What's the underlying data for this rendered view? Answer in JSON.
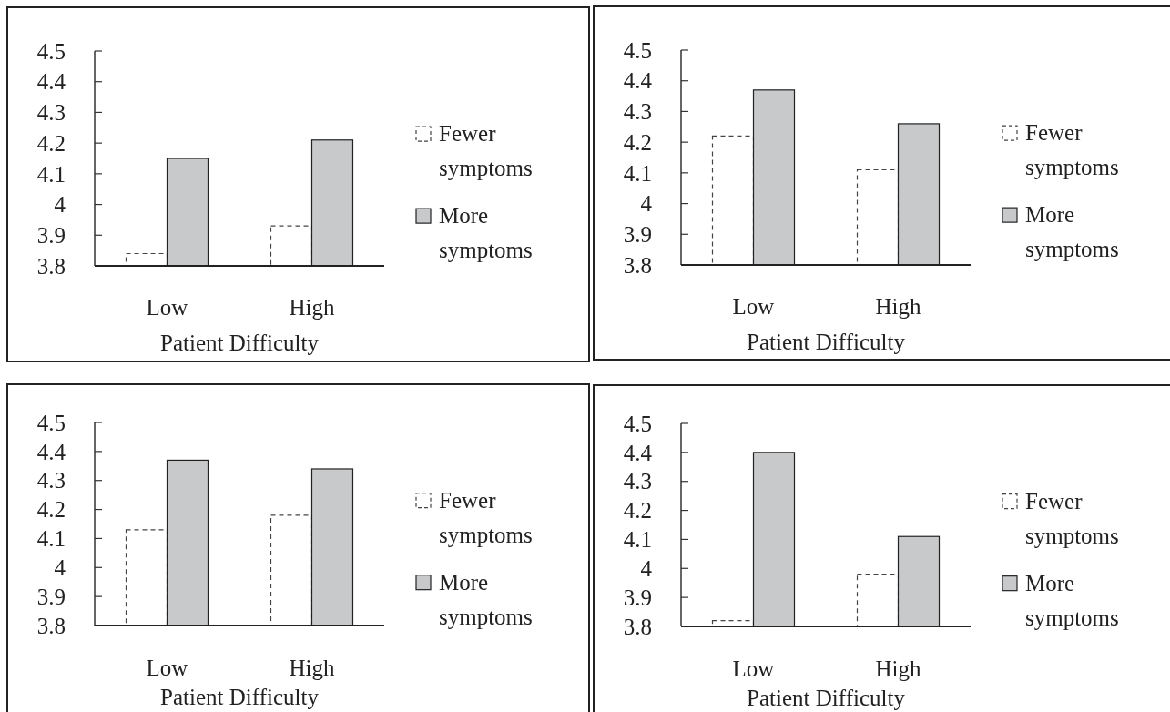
{
  "chart_data": [
    {
      "type": "bar",
      "categories": [
        "Low",
        "High"
      ],
      "xlabel": "Patient Difficulty",
      "ylim": [
        3.8,
        4.5
      ],
      "yticks": [
        3.8,
        3.9,
        4,
        4.1,
        4.2,
        4.3,
        4.4,
        4.5
      ],
      "legend": "right",
      "series": [
        {
          "name": "Fewer symptoms",
          "color": "#ffffff",
          "values": [
            3.84,
            3.93
          ]
        },
        {
          "name": "More symptoms",
          "color": "#c8c9cb",
          "values": [
            4.15,
            4.21
          ]
        }
      ]
    },
    {
      "type": "bar",
      "categories": [
        "Low",
        "High"
      ],
      "xlabel": "Patient Difficulty",
      "ylim": [
        3.8,
        4.5
      ],
      "yticks": [
        3.8,
        3.9,
        4,
        4.1,
        4.2,
        4.3,
        4.4,
        4.5
      ],
      "legend": "right",
      "series": [
        {
          "name": "Fewer symptoms",
          "color": "#ffffff",
          "values": [
            4.22,
            4.11
          ]
        },
        {
          "name": "More symptoms",
          "color": "#c8c9cb",
          "values": [
            4.37,
            4.26
          ]
        }
      ]
    },
    {
      "type": "bar",
      "categories": [
        "Low",
        "High"
      ],
      "xlabel": "Patient Difficulty",
      "ylim": [
        3.8,
        4.5
      ],
      "yticks": [
        3.8,
        3.9,
        4,
        4.1,
        4.2,
        4.3,
        4.4,
        4.5
      ],
      "legend": "right",
      "series": [
        {
          "name": "Fewer symptoms",
          "color": "#ffffff",
          "values": [
            4.13,
            4.18
          ]
        },
        {
          "name": "More symptoms",
          "color": "#c8c9cb",
          "values": [
            4.37,
            4.34
          ]
        }
      ]
    },
    {
      "type": "bar",
      "categories": [
        "Low",
        "High"
      ],
      "xlabel": "Patient Difficulty",
      "ylim": [
        3.8,
        4.5
      ],
      "yticks": [
        3.8,
        3.9,
        4,
        4.1,
        4.2,
        4.3,
        4.4,
        4.5
      ],
      "legend": "right",
      "series": [
        {
          "name": "Fewer symptoms",
          "color": "#ffffff",
          "values": [
            3.82,
            3.98
          ]
        },
        {
          "name": "More symptoms",
          "color": "#c8c9cb",
          "values": [
            4.4,
            4.11
          ]
        }
      ]
    }
  ]
}
